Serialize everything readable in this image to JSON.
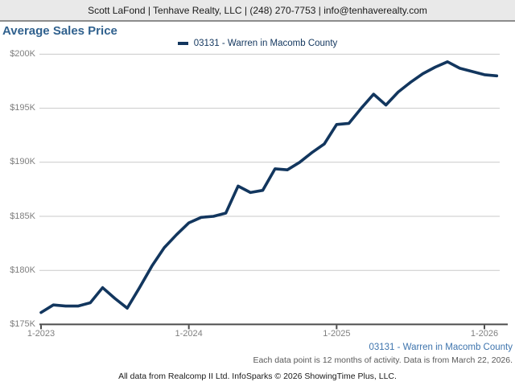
{
  "header": {
    "contact_line": "Scott LaFond | Tenhave Realty, LLC | (248) 270-7753 | info@tenhaverealty.com"
  },
  "title": "Average Sales Price",
  "legend": {
    "label": "03131 - Warren in Macomb County"
  },
  "chart_data": {
    "type": "line",
    "title": "Average Sales Price",
    "series": [
      {
        "name": "03131 - Warren in Macomb County",
        "months": [
          "1-2023",
          "2-2023",
          "3-2023",
          "4-2023",
          "5-2023",
          "6-2023",
          "7-2023",
          "8-2023",
          "9-2023",
          "10-2023",
          "11-2023",
          "12-2023",
          "1-2024",
          "2-2024",
          "3-2024",
          "4-2024",
          "5-2024",
          "6-2024",
          "7-2024",
          "8-2024",
          "9-2024",
          "10-2024",
          "11-2024",
          "12-2024",
          "1-2025",
          "2-2025",
          "3-2025",
          "4-2025",
          "5-2025",
          "6-2025",
          "7-2025",
          "8-2025",
          "9-2025",
          "10-2025",
          "11-2025",
          "12-2025",
          "1-2026",
          "2-2026"
        ],
        "values_thousands": [
          176.1,
          176.8,
          176.7,
          176.7,
          177.0,
          178.4,
          177.4,
          176.5,
          178.4,
          180.4,
          182.1,
          183.3,
          184.4,
          184.9,
          185.0,
          185.3,
          187.8,
          187.2,
          187.4,
          189.4,
          189.3,
          190.0,
          190.9,
          191.7,
          193.5,
          193.6,
          195.0,
          196.3,
          195.3,
          196.5,
          197.4,
          198.2,
          198.8,
          199.3,
          198.7,
          198.4,
          198.1,
          198.0
        ]
      }
    ],
    "ylabel": "",
    "xlabel": "",
    "ylim": [
      175,
      201
    ],
    "y_ticks": [
      {
        "label": "$200K",
        "value": 200
      },
      {
        "label": "$195K",
        "value": 195
      },
      {
        "label": "$190K",
        "value": 190
      },
      {
        "label": "$185K",
        "value": 185
      },
      {
        "label": "$180K",
        "value": 180
      },
      {
        "label": "$175K",
        "value": 175
      }
    ],
    "x_tick_labels": [
      "1-2023",
      "1-2024",
      "1-2025",
      "1-2026"
    ],
    "grid": true,
    "legend_position": "top-center"
  },
  "footer": {
    "series_link": "03131 - Warren in Macomb County",
    "note": "Each data point is 12 months of activity. Data is from March 22, 2026.",
    "attribution": "All data from Realcomp II Ltd. InfoSparks © 2026 ShowingTime Plus, LLC."
  },
  "colors": {
    "line": "#12365e",
    "title": "#30618e",
    "link": "#3e74ad",
    "grid": "#c9c9c9",
    "axis": "#4d4d4d",
    "axis_label": "#7f7f7f",
    "note": "#595959",
    "header_text": "#1a1a1a",
    "header_bg": "#e9e9e9",
    "header_border": "#8c8c8c"
  }
}
